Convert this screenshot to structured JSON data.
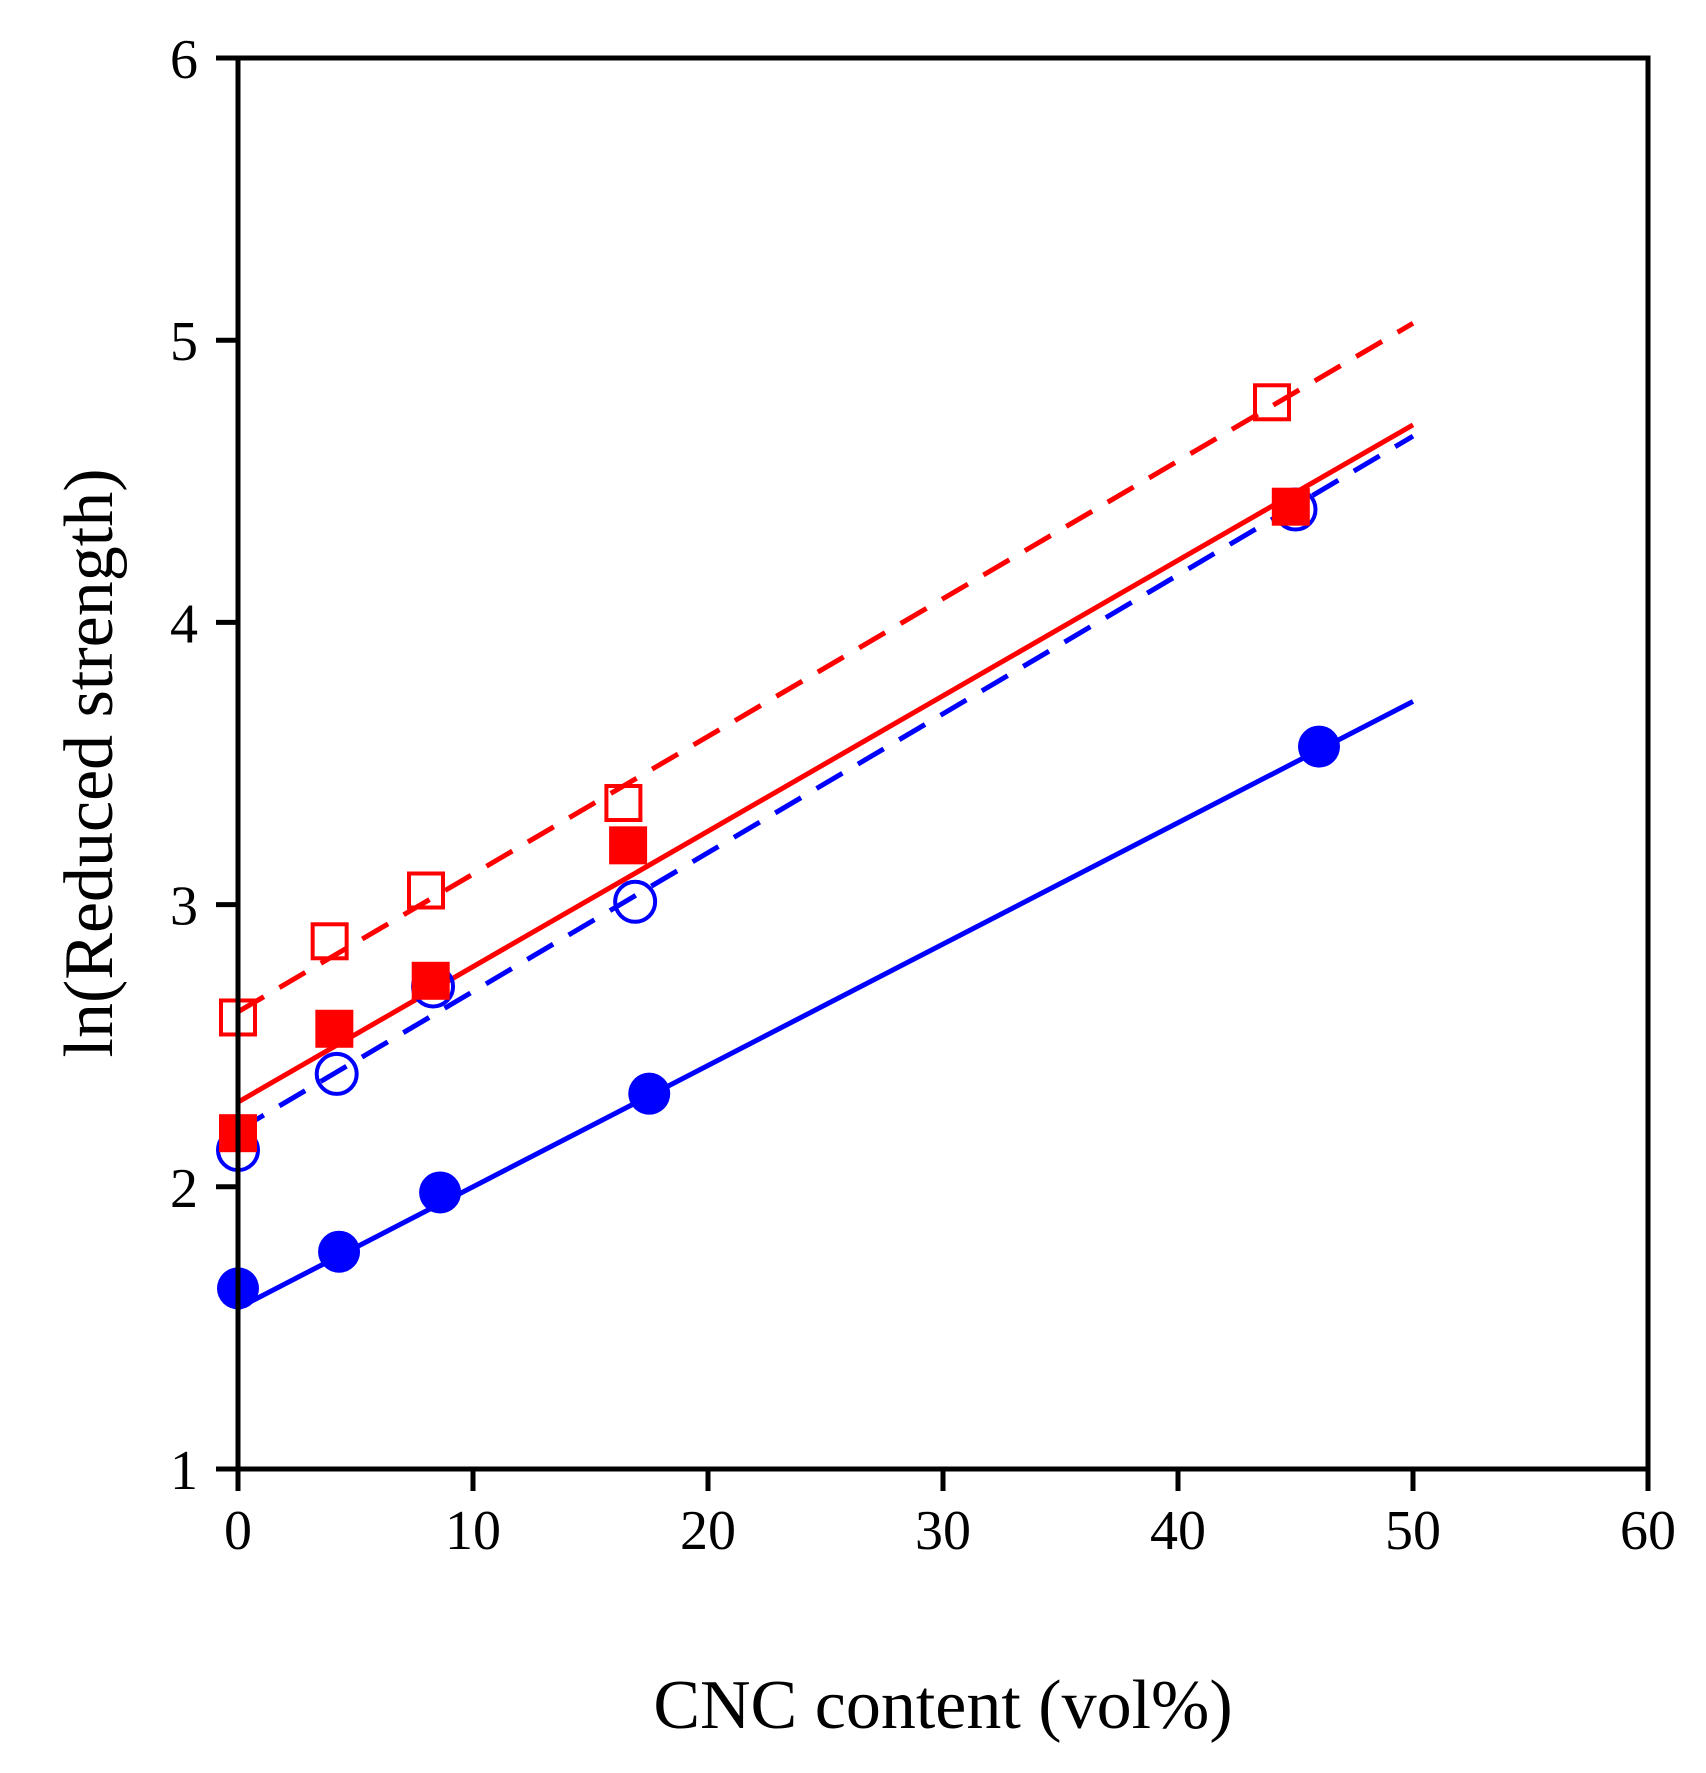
{
  "chart_data": {
    "type": "scatter",
    "title": "",
    "xlabel": "CNC content (vol%)",
    "ylabel": "ln(Reduced strength)",
    "xlim": [
      -1,
      60
    ],
    "ylim": [
      1,
      6
    ],
    "xticks": [
      0,
      10,
      20,
      30,
      40,
      50,
      60
    ],
    "yticks": [
      1,
      2,
      3,
      4,
      5,
      6
    ],
    "grid": false,
    "legend": "none",
    "series": [
      {
        "marker": "filled-circle",
        "color": "#0000ff",
        "points": [
          [
            0,
            1.64
          ],
          [
            4.3,
            1.77
          ],
          [
            8.6,
            1.98
          ],
          [
            17.5,
            2.33
          ],
          [
            46,
            3.56
          ]
        ],
        "fit": {
          "style": "solid",
          "x": [
            0,
            50
          ],
          "y": [
            1.57,
            3.72
          ]
        }
      },
      {
        "marker": "open-circle",
        "color": "#0000ff",
        "points": [
          [
            0,
            2.13
          ],
          [
            4.2,
            2.4
          ],
          [
            8.3,
            2.71
          ],
          [
            16.9,
            3.01
          ],
          [
            45,
            4.4
          ]
        ],
        "fit": {
          "style": "dashed",
          "x": [
            0,
            50
          ],
          "y": [
            2.2,
            4.66
          ]
        }
      },
      {
        "marker": "filled-square",
        "color": "#ff0000",
        "points": [
          [
            0,
            2.19
          ],
          [
            4.1,
            2.56
          ],
          [
            8.2,
            2.73
          ],
          [
            16.6,
            3.21
          ],
          [
            44.8,
            4.41
          ]
        ],
        "fit": {
          "style": "solid",
          "x": [
            0,
            50
          ],
          "y": [
            2.3,
            4.7
          ]
        }
      },
      {
        "marker": "open-square",
        "color": "#ff0000",
        "points": [
          [
            0,
            2.6
          ],
          [
            3.9,
            2.87
          ],
          [
            8,
            3.05
          ],
          [
            16.4,
            3.36
          ],
          [
            44,
            4.78
          ]
        ],
        "fit": {
          "style": "dashed",
          "x": [
            0,
            50
          ],
          "y": [
            2.62,
            5.06
          ]
        }
      }
    ]
  }
}
